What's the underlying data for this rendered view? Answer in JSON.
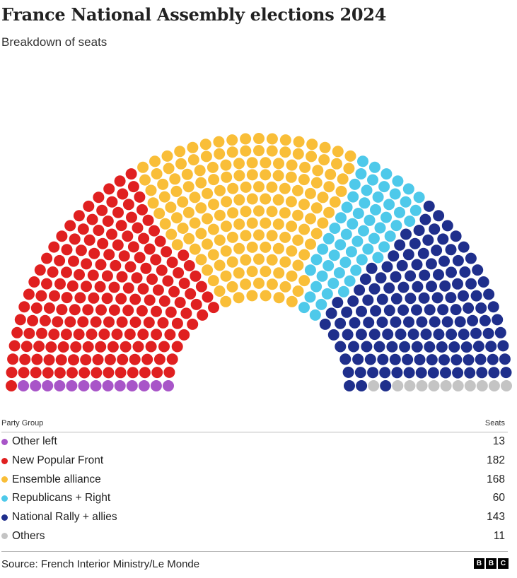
{
  "title": "France National Assembly elections 2024",
  "subtitle": "Breakdown of seats",
  "legend_header": {
    "group": "Party Group",
    "seats": "Seats"
  },
  "source": "Source: French Interior Ministry/Le Monde",
  "logo": [
    "B",
    "B",
    "C"
  ],
  "chart_data": {
    "type": "parliament",
    "title": "France National Assembly elections 2024",
    "subtitle": "Breakdown of seats",
    "total_seats": 577,
    "parties": [
      {
        "name": "Other left",
        "seats": 13,
        "color": "#a855c8"
      },
      {
        "name": "New Popular Front",
        "seats": 182,
        "color": "#e02020"
      },
      {
        "name": "Ensemble alliance",
        "seats": 168,
        "color": "#f9be38"
      },
      {
        "name": "Republicans + Right",
        "seats": 60,
        "color": "#4ec9ea"
      },
      {
        "name": "National Rally + allies",
        "seats": 143,
        "color": "#1f2f8c"
      },
      {
        "name": "Others",
        "seats": 11,
        "color": "#c4c4c4"
      }
    ]
  }
}
